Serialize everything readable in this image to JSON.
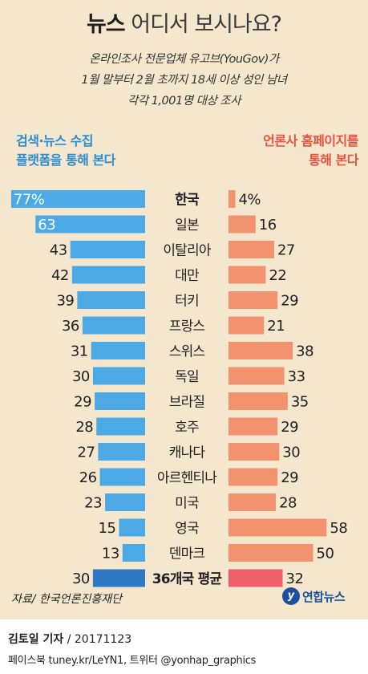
{
  "header": {
    "title_bold": "뉴스",
    "title_rest": " 어디서 보시나요?",
    "subtitle_lines": [
      "온라인조사 전문업체 유고브(YouGov)가",
      "1월 말부터 2월 초까지 18세 이상 성인 남녀",
      "각각 1,001명 대상 조사"
    ]
  },
  "chart_data": {
    "type": "bar",
    "orientation": "horizontal-butterfly",
    "series": [
      {
        "name": "검색·뉴스 수집 플랫폼을 통해 본다",
        "label_lines": [
          "검색·뉴스 수집",
          "플랫폼을 통해 본다"
        ],
        "color": "#4da9e3",
        "highlight_color": "#2f78c4",
        "values": [
          77,
          63,
          43,
          42,
          39,
          36,
          31,
          30,
          29,
          28,
          27,
          26,
          23,
          15,
          13,
          30
        ]
      },
      {
        "name": "언론사 홈페이지를 통해 본다",
        "label_lines": [
          "언론사 홈페이지를",
          "통해 본다"
        ],
        "color": "#f2926e",
        "highlight_color": "#ee5f6b",
        "values": [
          4,
          16,
          27,
          22,
          29,
          21,
          38,
          33,
          35,
          29,
          30,
          29,
          28,
          58,
          50,
          32
        ]
      }
    ],
    "categories": [
      "한국",
      "일본",
      "이탈리아",
      "대만",
      "터키",
      "프랑스",
      "스위스",
      "독일",
      "브라질",
      "호주",
      "캐나다",
      "아르헨티나",
      "미국",
      "영국",
      "덴마크",
      "36개국 평균"
    ],
    "value_labels_left": [
      "77%",
      "63",
      "43",
      "42",
      "39",
      "36",
      "31",
      "30",
      "29",
      "28",
      "27",
      "26",
      "23",
      "15",
      "13",
      "30"
    ],
    "value_labels_right": [
      "4%",
      "16",
      "27",
      "22",
      "29",
      "21",
      "38",
      "33",
      "35",
      "29",
      "30",
      "29",
      "28",
      "58",
      "50",
      "32"
    ],
    "unit": "%",
    "highlight_categories": [
      "36개국 평균"
    ],
    "bold_categories": [
      "한국"
    ]
  },
  "footer": {
    "source": "자료/ 한국언론진흥재단",
    "logo_mark": "y",
    "logo_text": "연합뉴스",
    "reporter": "김토일 기자",
    "date_part": " / 20171123",
    "social": "페이스북 tuney.kr/LeYN1, 트위터 @yonhap_graphics"
  }
}
